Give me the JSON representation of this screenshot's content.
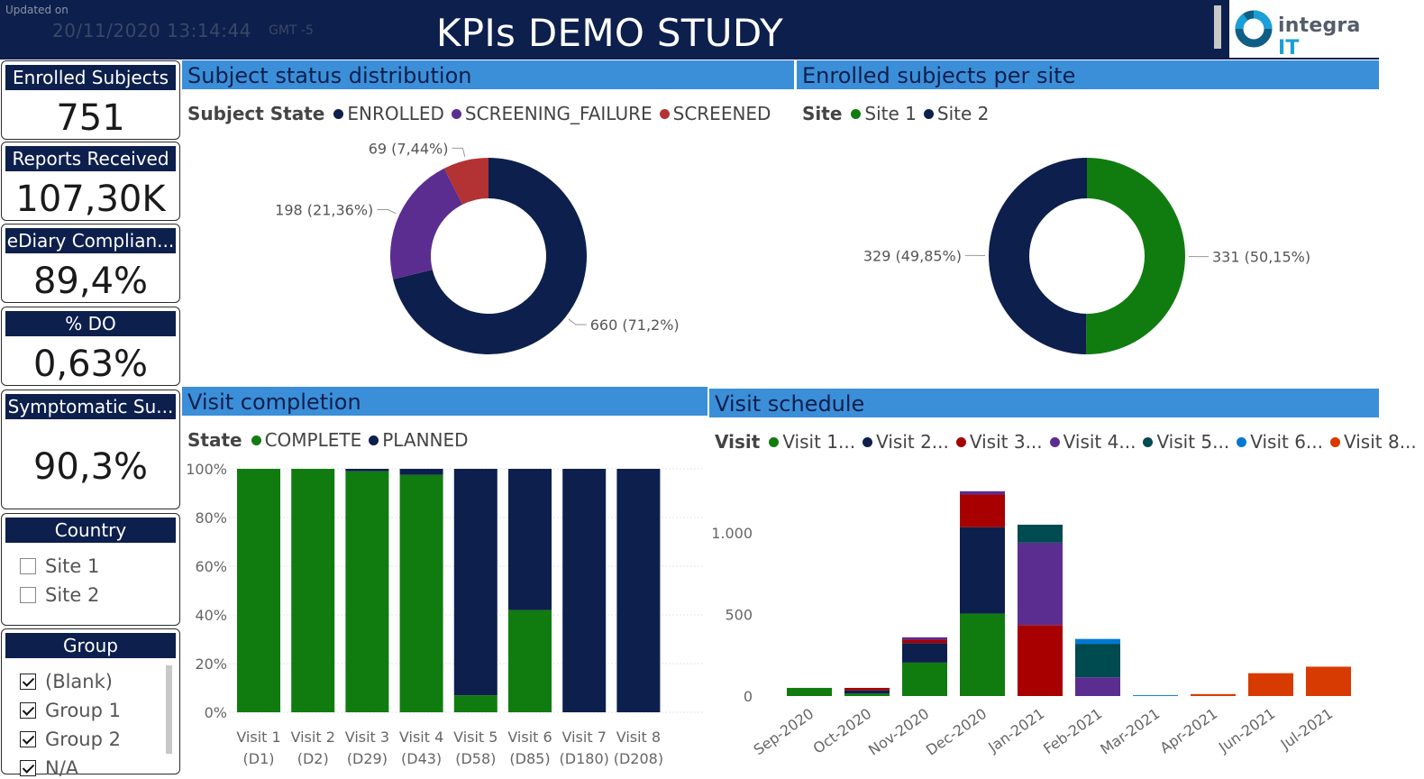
{
  "header": {
    "updated_label": "Updated on",
    "updated_value": "20/11/2020 13:14:44",
    "timezone": "GMT -5",
    "title": "KPIs DEMO STUDY",
    "logo_name": "integra",
    "logo_suffix": "IT"
  },
  "kpis": [
    {
      "label": "Enrolled Subjects",
      "value": "751"
    },
    {
      "label": "Reports Received",
      "value": "107,30K"
    },
    {
      "label": "eDiary Complian...",
      "value": "89,4%"
    },
    {
      "label": "% DO",
      "value": "0,63%"
    },
    {
      "label": "Symptomatic Su...",
      "value": "90,3%"
    }
  ],
  "slicers": {
    "country": {
      "title": "Country",
      "items": [
        {
          "label": "Site 1",
          "checked": false
        },
        {
          "label": "Site 2",
          "checked": false
        }
      ]
    },
    "group": {
      "title": "Group",
      "items": [
        {
          "label": "(Blank)",
          "checked": true
        },
        {
          "label": "Group 1",
          "checked": true
        },
        {
          "label": "Group 2",
          "checked": true
        },
        {
          "label": "N/A",
          "checked": true
        }
      ]
    }
  },
  "colors": {
    "navy": "#0d1f4c",
    "green": "#107c10",
    "purple": "#5c2d91",
    "red": "#b33234",
    "dark_red": "#a80000",
    "teal": "#004b50",
    "blue": "#0078d4",
    "orange": "#d83b01",
    "header_blue": "#3b8fd9"
  },
  "chart_data": [
    {
      "id": "subject-status",
      "type": "pie",
      "title": "Subject status distribution",
      "legend_title": "Subject State",
      "slices": [
        {
          "label": "ENROLLED",
          "value": 660,
          "data_label": "660 (71,2%)",
          "color": "#0d1f4c"
        },
        {
          "label": "SCREENING_FAILURE",
          "value": 198,
          "data_label": "198 (21,36%)",
          "color": "#5c2d91"
        },
        {
          "label": "SCREENED",
          "value": 69,
          "data_label": "69 (7,44%)",
          "color": "#b33234"
        }
      ]
    },
    {
      "id": "subjects-per-site",
      "type": "pie",
      "title": "Enrolled subjects per site",
      "legend_title": "Site",
      "slices": [
        {
          "label": "Site 1",
          "value": 331,
          "data_label": "331 (50,15%)",
          "color": "#107c10"
        },
        {
          "label": "Site 2",
          "value": 329,
          "data_label": "329 (49,85%)",
          "color": "#0d1f4c"
        }
      ]
    },
    {
      "id": "visit-completion",
      "type": "bar",
      "stacked": "percent",
      "title": "Visit completion",
      "legend_title": "State",
      "categories": [
        "Visit 1 (D1)",
        "Visit 2 (D2)",
        "Visit 3 (D29)",
        "Visit 4 (D43)",
        "Visit 5 (D58)",
        "Visit 6 (D85)",
        "Visit 7 (D180)",
        "Visit 8 (D208)"
      ],
      "category_lines": [
        [
          "Visit 1",
          "(D1)"
        ],
        [
          "Visit 2",
          "(D2)"
        ],
        [
          "Visit 3",
          "(D29)"
        ],
        [
          "Visit 4",
          "(D43)"
        ],
        [
          "Visit 5",
          "(D58)"
        ],
        [
          "Visit 6",
          "(D85)"
        ],
        [
          "Visit 7",
          "(D180)"
        ],
        [
          "Visit 8",
          "(D208)"
        ]
      ],
      "series": [
        {
          "name": "COMPLETE",
          "color": "#107c10",
          "values": [
            100,
            100,
            99,
            97.5,
            7,
            42,
            0,
            0
          ]
        },
        {
          "name": "PLANNED",
          "color": "#0d1f4c",
          "values": [
            0,
            0,
            1,
            2.5,
            93,
            58,
            100,
            100
          ]
        }
      ],
      "yticks": [
        "0%",
        "20%",
        "40%",
        "60%",
        "80%",
        "100%"
      ],
      "ylim": [
        0,
        100
      ]
    },
    {
      "id": "visit-schedule",
      "type": "bar",
      "stacked": "stacked",
      "title": "Visit schedule",
      "legend_title": "Visit",
      "categories": [
        "Sep-2020",
        "Oct-2020",
        "Nov-2020",
        "Dec-2020",
        "Jan-2021",
        "Feb-2021",
        "Mar-2021",
        "Apr-2021",
        "Jun-2021",
        "Jul-2021"
      ],
      "series": [
        {
          "name": "Visit 1...",
          "color": "#107c10",
          "values": [
            50,
            15,
            205,
            505,
            0,
            0,
            0,
            0,
            0,
            0
          ]
        },
        {
          "name": "Visit 2...",
          "color": "#0d1f4c",
          "values": [
            0,
            20,
            120,
            530,
            0,
            0,
            0,
            0,
            0,
            0
          ]
        },
        {
          "name": "Visit 3...",
          "color": "#a80000",
          "values": [
            0,
            15,
            20,
            200,
            435,
            0,
            0,
            0,
            0,
            0
          ]
        },
        {
          "name": "Visit 4...",
          "color": "#5c2d91",
          "values": [
            0,
            0,
            15,
            20,
            505,
            115,
            0,
            0,
            0,
            0
          ]
        },
        {
          "name": "Visit 5...",
          "color": "#004b50",
          "values": [
            0,
            0,
            0,
            0,
            110,
            205,
            0,
            0,
            0,
            0
          ]
        },
        {
          "name": "Visit 6...",
          "color": "#0078d4",
          "values": [
            0,
            0,
            0,
            0,
            0,
            30,
            5,
            0,
            0,
            0
          ]
        },
        {
          "name": "Visit 8...",
          "color": "#d83b01",
          "values": [
            0,
            0,
            0,
            0,
            0,
            0,
            0,
            12,
            140,
            180
          ]
        }
      ],
      "yticks": [
        {
          "value": 0,
          "label": "0"
        },
        {
          "value": 500,
          "label": "500"
        },
        {
          "value": 1000,
          "label": "1.000"
        }
      ],
      "ylim": [
        0,
        1300
      ]
    }
  ]
}
